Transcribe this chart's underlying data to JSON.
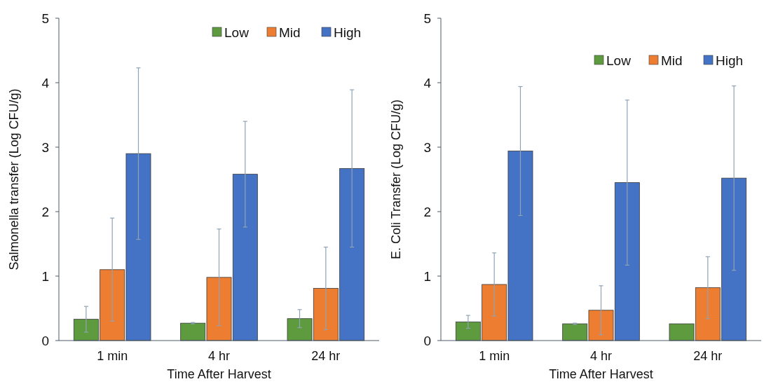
{
  "chart_data": [
    {
      "type": "bar",
      "xlabel": "Time After Harvest",
      "ylabel": "Salmonella transfer (Log CFU/g)",
      "categories": [
        "1 min",
        "4 hr",
        "24 hr"
      ],
      "ylim": [
        0,
        5
      ],
      "yticks": [
        0,
        1,
        2,
        3,
        4,
        5
      ],
      "grid": false,
      "legend": "top right",
      "series": [
        {
          "name": "Low",
          "color": "#5e9b3f",
          "values": [
            0.33,
            0.27,
            0.34
          ],
          "errors": [
            0.2,
            0.01,
            0.14
          ]
        },
        {
          "name": "Mid",
          "color": "#ed7d31",
          "values": [
            1.1,
            0.98,
            0.81
          ],
          "errors": [
            0.8,
            0.75,
            0.64
          ]
        },
        {
          "name": "High",
          "color": "#4472c4",
          "values": [
            2.9,
            2.58,
            2.67
          ],
          "errors": [
            1.33,
            0.82,
            1.22
          ]
        }
      ]
    },
    {
      "type": "bar",
      "xlabel": "Time After Harvest",
      "ylabel": "E. Coli Transfer (Log CFU/g)",
      "categories": [
        "1 min",
        "4 hr",
        "24 hr"
      ],
      "ylim": [
        0,
        5
      ],
      "yticks": [
        0,
        1,
        2,
        3,
        4,
        5
      ],
      "grid": false,
      "legend": "top right",
      "series": [
        {
          "name": "Low",
          "color": "#5e9b3f",
          "values": [
            0.29,
            0.26,
            0.26
          ],
          "errors": [
            0.1,
            0.01,
            null
          ]
        },
        {
          "name": "Mid",
          "color": "#ed7d31",
          "values": [
            0.87,
            0.47,
            0.82
          ],
          "errors": [
            0.49,
            0.38,
            0.48
          ]
        },
        {
          "name": "High",
          "color": "#4472c4",
          "values": [
            2.94,
            2.45,
            2.52
          ],
          "errors": [
            1.0,
            1.28,
            1.43
          ]
        }
      ]
    }
  ]
}
